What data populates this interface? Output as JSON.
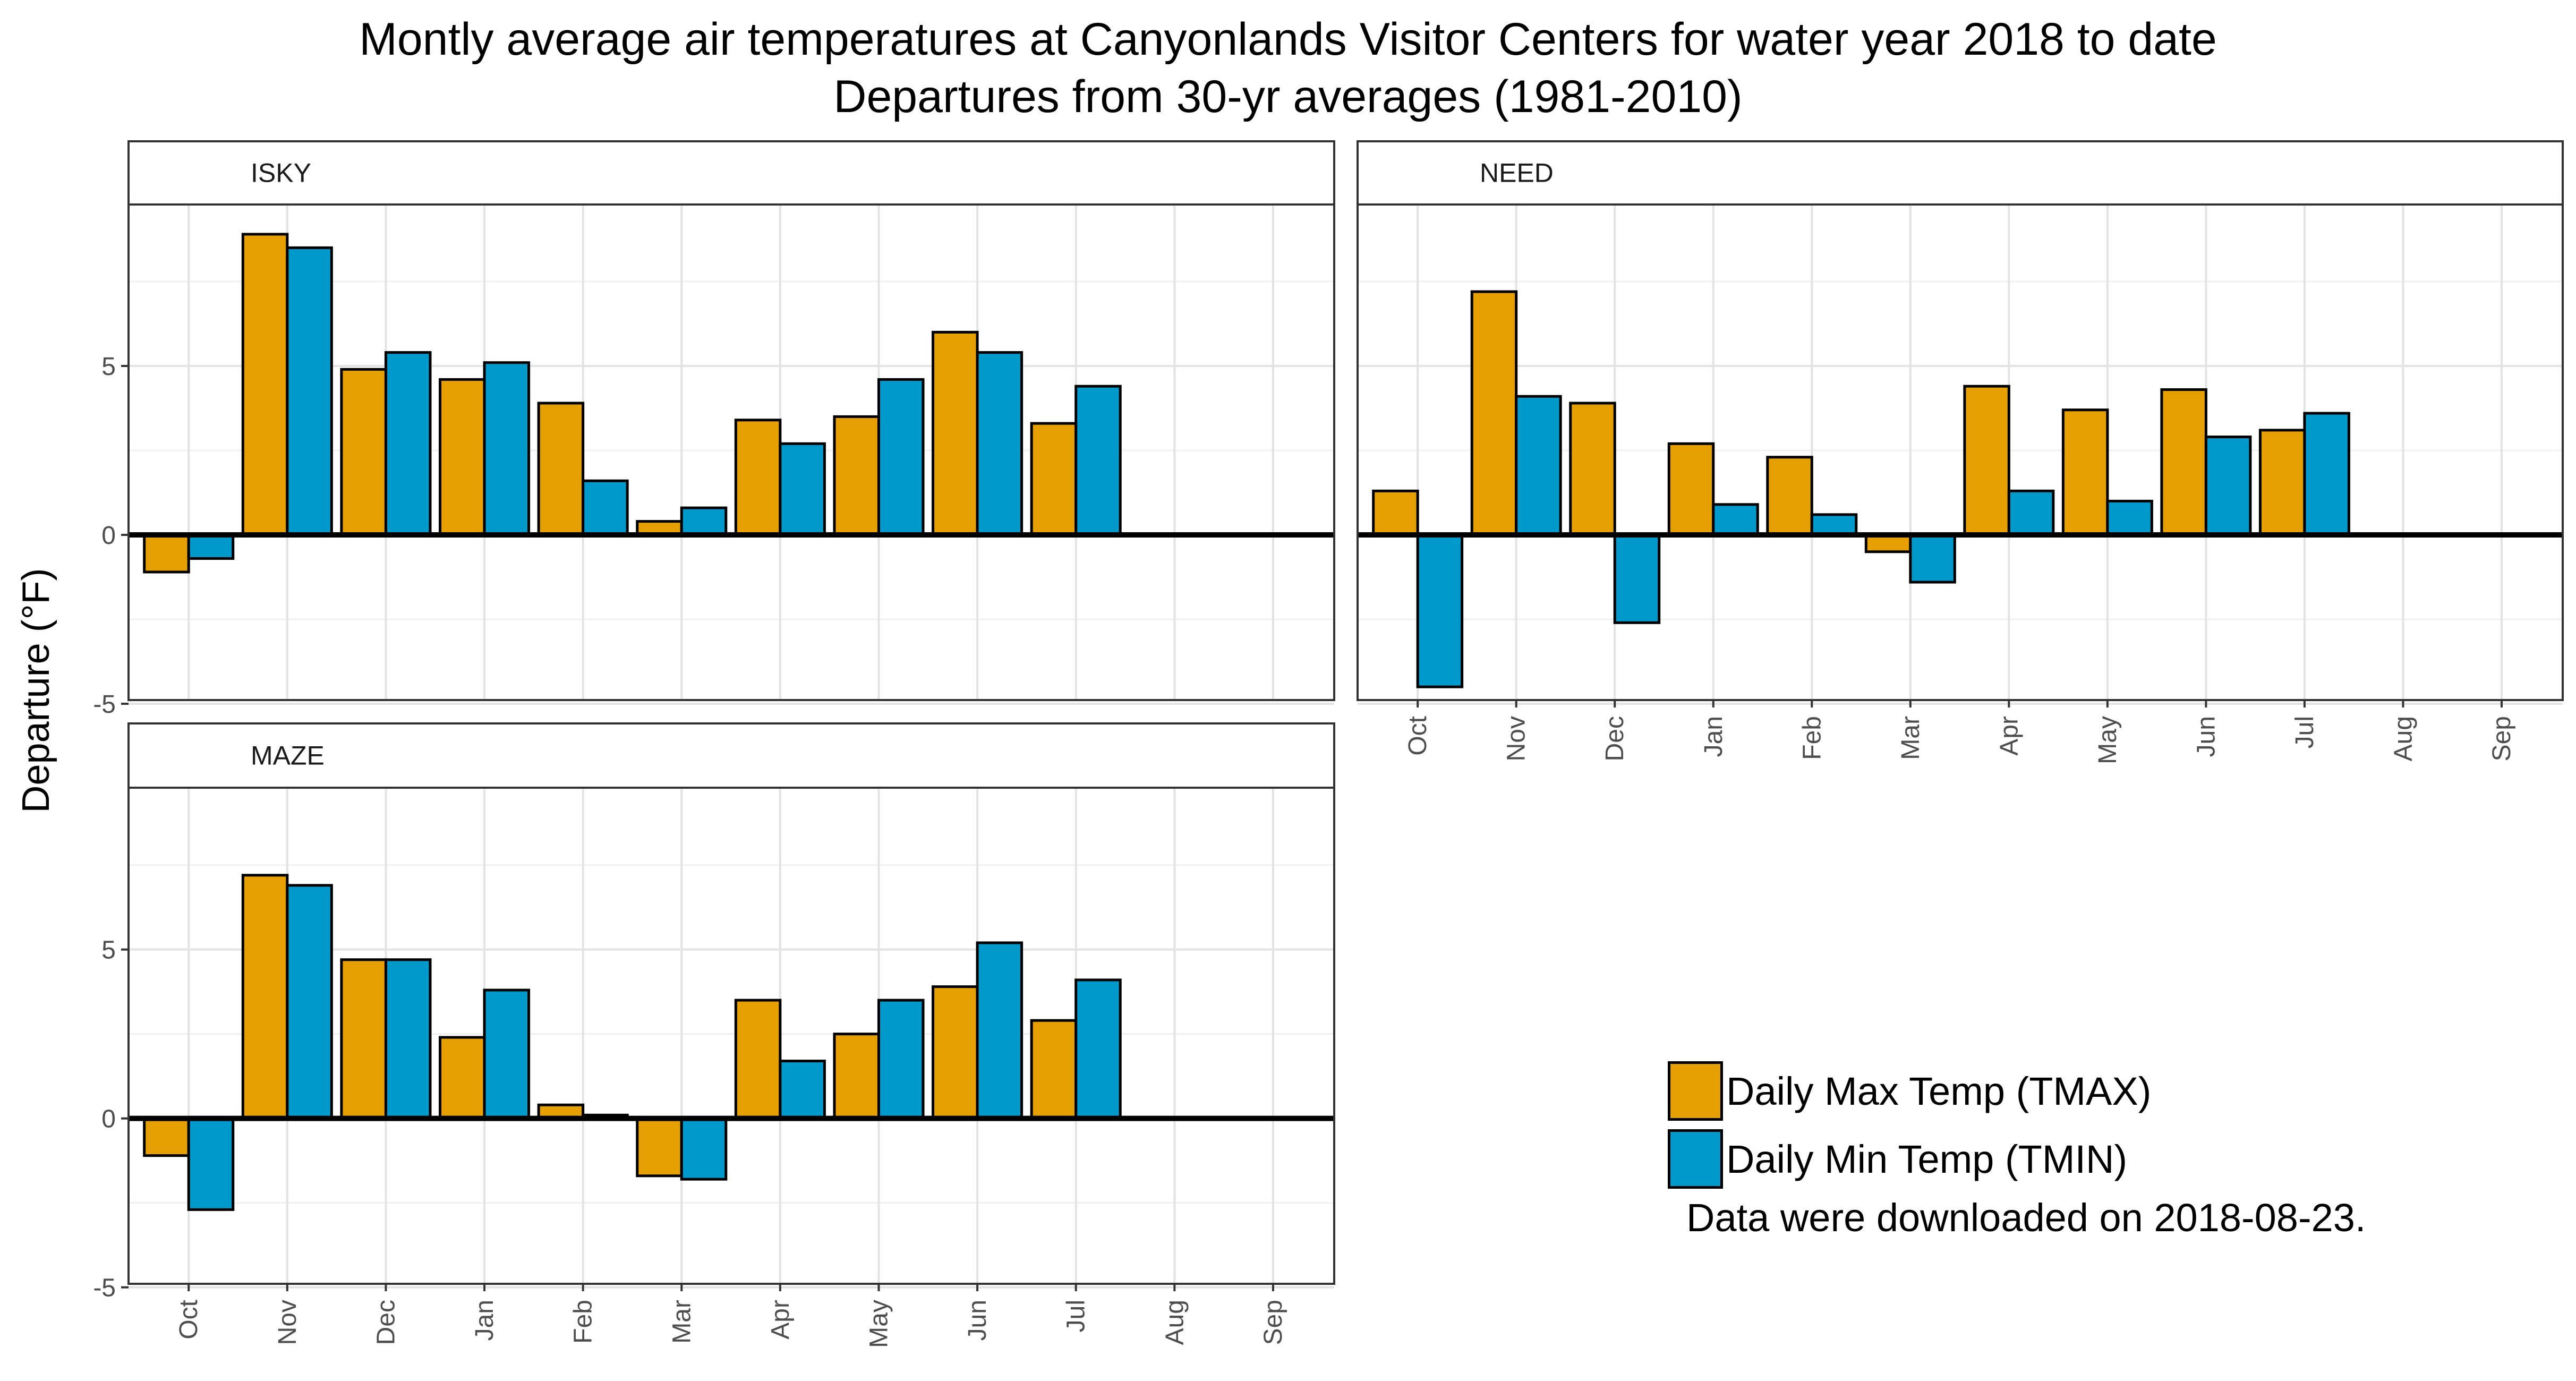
{
  "title_line1": "Montly average air temperatures at Canyonlands Visitor Centers for water year 2018 to date",
  "title_line2": "Departures from 30-yr averages (1981-2010)",
  "ylabel": "Departure (°F)",
  "note": "Data were downloaded on 2018-08-23.",
  "colors": {
    "tmax": "#E69F00",
    "tmin": "#0099CC"
  },
  "chart_data": {
    "type": "bar",
    "categories": [
      "Oct",
      "Nov",
      "Dec",
      "Jan",
      "Feb",
      "Mar",
      "Apr",
      "May",
      "Jun",
      "Jul",
      "Aug",
      "Sep"
    ],
    "ylim": [
      -5,
      10
    ],
    "yticks": [
      "-5",
      "0",
      "5"
    ],
    "grid": true,
    "legend_position": "bottom-right",
    "series_names": [
      "Daily Max Temp (TMAX)",
      "Daily Min Temp (TMIN)"
    ],
    "panels": [
      {
        "name": "ISKY",
        "series": [
          {
            "name": "Daily Max Temp (TMAX)",
            "values": [
              -1.1,
              8.9,
              4.9,
              4.6,
              3.9,
              0.4,
              3.4,
              3.5,
              6.0,
              3.3,
              null,
              null
            ]
          },
          {
            "name": "Daily Min Temp (TMIN)",
            "values": [
              -0.7,
              8.5,
              5.4,
              5.1,
              1.6,
              0.8,
              2.7,
              4.6,
              5.4,
              4.4,
              null,
              null
            ]
          }
        ]
      },
      {
        "name": "NEED",
        "series": [
          {
            "name": "Daily Max Temp (TMAX)",
            "values": [
              1.3,
              7.2,
              3.9,
              2.7,
              2.3,
              -0.5,
              4.4,
              3.7,
              4.3,
              3.1,
              null,
              null
            ]
          },
          {
            "name": "Daily Min Temp (TMIN)",
            "values": [
              -4.5,
              4.1,
              -2.6,
              0.9,
              0.6,
              -1.4,
              1.3,
              1.0,
              2.9,
              3.6,
              null,
              null
            ]
          }
        ]
      },
      {
        "name": "MAZE",
        "series": [
          {
            "name": "Daily Max Temp (TMAX)",
            "values": [
              -1.1,
              7.2,
              4.7,
              2.4,
              0.4,
              -1.7,
              3.5,
              2.5,
              3.9,
              2.9,
              null,
              null
            ]
          },
          {
            "name": "Daily Min Temp (TMIN)",
            "values": [
              -2.7,
              6.9,
              4.7,
              3.8,
              0.1,
              -1.8,
              1.7,
              3.5,
              5.2,
              4.1,
              null,
              null
            ]
          }
        ]
      }
    ]
  }
}
